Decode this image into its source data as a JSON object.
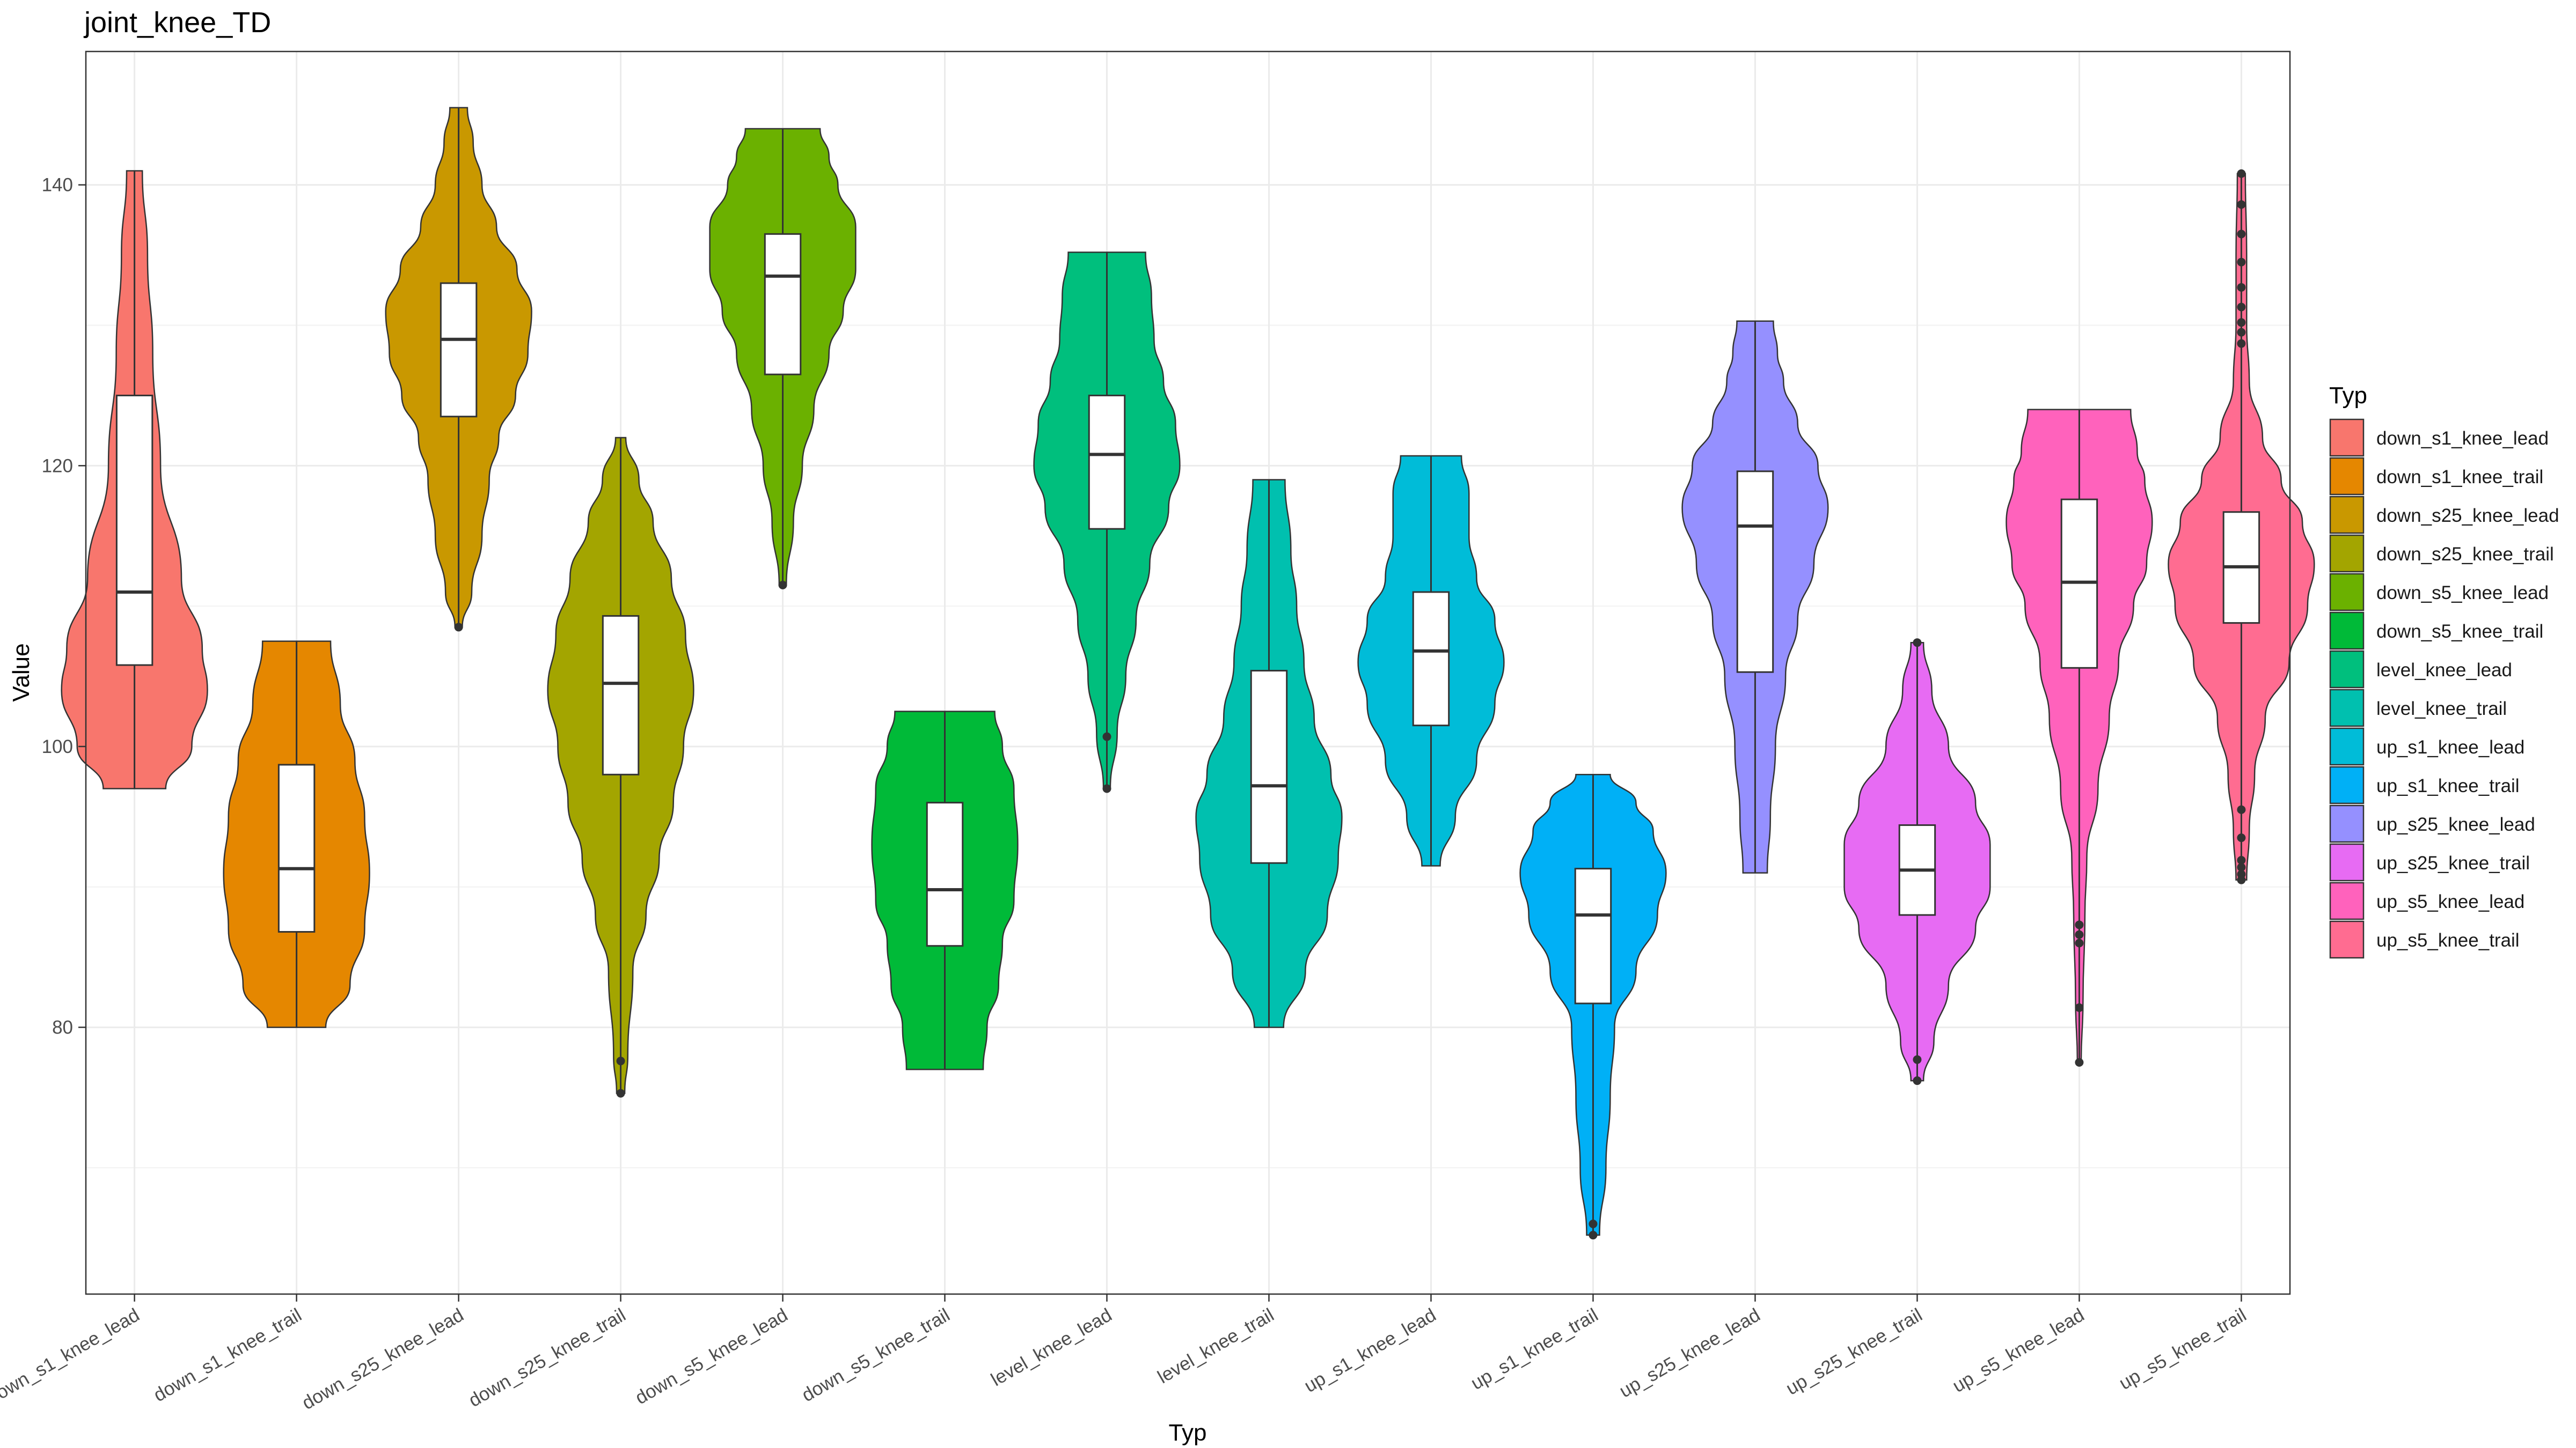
{
  "chart_data": {
    "type": "violin",
    "title": "joint_knee_TD",
    "xlabel": "Typ",
    "ylabel": "Value",
    "ylim": [
      61,
      149.5
    ],
    "yticks": [
      80,
      100,
      120,
      140
    ],
    "grid": true,
    "legend_title": "Typ",
    "legend_position": "right",
    "categories": [
      "down_s1_knee_lead",
      "down_s1_knee_trail",
      "down_s25_knee_lead",
      "down_s25_knee_trail",
      "down_s5_knee_lead",
      "down_s5_knee_trail",
      "level_knee_lead",
      "level_knee_trail",
      "up_s1_knee_lead",
      "up_s1_knee_trail",
      "up_s25_knee_lead",
      "up_s25_knee_trail",
      "up_s5_knee_lead",
      "up_s5_knee_trail"
    ],
    "colors": [
      "#F8766D",
      "#E58700",
      "#C99800",
      "#A3A500",
      "#6BB100",
      "#00BA38",
      "#00BF7D",
      "#00C0AF",
      "#00BCD8",
      "#00B0F6",
      "#9590FF",
      "#E76BF3",
      "#FF62BC",
      "#FF6C91"
    ],
    "series": [
      {
        "name": "down_s1_knee_lead",
        "min": 97,
        "max": 141,
        "q1": 105.8,
        "median": 111,
        "q3": 125,
        "outliers": [],
        "density": [
          [
            97,
            0.12
          ],
          [
            100,
            0.22
          ],
          [
            104,
            0.28
          ],
          [
            107,
            0.26
          ],
          [
            112,
            0.18
          ],
          [
            120,
            0.1
          ],
          [
            128,
            0.07
          ],
          [
            135,
            0.05
          ],
          [
            141,
            0.03
          ]
        ]
      },
      {
        "name": "down_s1_knee_trail",
        "min": 80,
        "max": 107.5,
        "q1": 86.8,
        "median": 91.3,
        "q3": 98.7,
        "outliers": [],
        "density": [
          [
            80,
            0.12
          ],
          [
            83,
            0.22
          ],
          [
            87,
            0.28
          ],
          [
            91,
            0.3
          ],
          [
            95,
            0.28
          ],
          [
            99,
            0.24
          ],
          [
            103,
            0.18
          ],
          [
            107.5,
            0.14
          ]
        ]
      },
      {
        "name": "down_s25_knee_lead",
        "min": 108.5,
        "max": 145.5,
        "q1": 123.5,
        "median": 129,
        "q3": 133,
        "outliers": [
          108.5
        ],
        "density": [
          [
            108.5,
            0.05
          ],
          [
            111,
            0.18
          ],
          [
            115,
            0.32
          ],
          [
            119,
            0.42
          ],
          [
            122,
            0.55
          ],
          [
            125,
            0.78
          ],
          [
            128,
            0.95
          ],
          [
            131,
            1.0
          ],
          [
            134,
            0.8
          ],
          [
            137,
            0.52
          ],
          [
            140,
            0.32
          ],
          [
            143,
            0.2
          ],
          [
            145.5,
            0.12
          ]
        ]
      },
      {
        "name": "down_s25_knee_trail",
        "min": 75.3,
        "max": 122,
        "q1": 98,
        "median": 104.5,
        "q3": 109.3,
        "outliers": [
          75.3,
          77.6
        ],
        "density": [
          [
            75.3,
            0.04
          ],
          [
            78,
            0.07
          ],
          [
            84,
            0.12
          ],
          [
            88,
            0.25
          ],
          [
            92,
            0.38
          ],
          [
            96,
            0.52
          ],
          [
            100,
            0.62
          ],
          [
            104,
            0.72
          ],
          [
            108,
            0.64
          ],
          [
            112,
            0.5
          ],
          [
            116,
            0.32
          ],
          [
            119,
            0.18
          ],
          [
            122,
            0.05
          ]
        ]
      },
      {
        "name": "down_s5_knee_lead",
        "min": 111.5,
        "max": 144,
        "q1": 126.5,
        "median": 133.5,
        "q3": 136.5,
        "outliers": [
          111.5
        ],
        "density": [
          [
            111.5,
            0.04
          ],
          [
            116,
            0.12
          ],
          [
            120,
            0.22
          ],
          [
            124,
            0.35
          ],
          [
            128,
            0.52
          ],
          [
            131,
            0.68
          ],
          [
            134,
            0.82
          ],
          [
            137,
            0.82
          ],
          [
            140,
            0.62
          ],
          [
            142,
            0.52
          ],
          [
            144,
            0.42
          ]
        ]
      },
      {
        "name": "down_s5_knee_trail",
        "min": 77,
        "max": 102.5,
        "q1": 85.8,
        "median": 89.8,
        "q3": 96,
        "outliers": [],
        "density": [
          [
            77,
            0.2
          ],
          [
            80,
            0.22
          ],
          [
            83,
            0.28
          ],
          [
            86,
            0.3
          ],
          [
            89,
            0.36
          ],
          [
            93,
            0.38
          ],
          [
            97,
            0.36
          ],
          [
            100,
            0.3
          ],
          [
            102.5,
            0.26
          ]
        ]
      },
      {
        "name": "level_knee_lead",
        "min": 97,
        "max": 135.2,
        "q1": 115.5,
        "median": 120.8,
        "q3": 125,
        "outliers": [
          97,
          100.7
        ],
        "density": [
          [
            97,
            0.04
          ],
          [
            101,
            0.12
          ],
          [
            105,
            0.22
          ],
          [
            109,
            0.34
          ],
          [
            113,
            0.5
          ],
          [
            117,
            0.72
          ],
          [
            120,
            0.85
          ],
          [
            123,
            0.8
          ],
          [
            126,
            0.66
          ],
          [
            129,
            0.55
          ],
          [
            132,
            0.52
          ],
          [
            135.2,
            0.45
          ]
        ]
      },
      {
        "name": "level_knee_trail",
        "min": 80,
        "max": 119,
        "q1": 91.7,
        "median": 97.2,
        "q3": 105.4,
        "outliers": [],
        "density": [
          [
            80,
            0.2
          ],
          [
            84,
            0.5
          ],
          [
            88,
            0.8
          ],
          [
            92,
            0.95
          ],
          [
            95,
            1.0
          ],
          [
            98,
            0.85
          ],
          [
            102,
            0.62
          ],
          [
            106,
            0.48
          ],
          [
            110,
            0.38
          ],
          [
            114,
            0.3
          ],
          [
            119,
            0.22
          ]
        ]
      },
      {
        "name": "up_s1_knee_lead",
        "min": 91.5,
        "max": 120.7,
        "q1": 101.5,
        "median": 106.8,
        "q3": 111,
        "outliers": [],
        "density": [
          [
            91.5,
            0.06
          ],
          [
            95,
            0.16
          ],
          [
            99,
            0.3
          ],
          [
            103,
            0.42
          ],
          [
            106,
            0.48
          ],
          [
            109,
            0.42
          ],
          [
            112,
            0.3
          ],
          [
            115,
            0.25
          ],
          [
            118,
            0.25
          ],
          [
            120.7,
            0.2
          ]
        ]
      },
      {
        "name": "up_s1_knee_trail",
        "min": 65.2,
        "max": 98,
        "q1": 81.7,
        "median": 88,
        "q3": 91.3,
        "outliers": [
          65.2,
          66
        ],
        "density": [
          [
            65.2,
            0.03
          ],
          [
            70,
            0.06
          ],
          [
            75,
            0.08
          ],
          [
            80,
            0.1
          ],
          [
            84,
            0.2
          ],
          [
            88,
            0.3
          ],
          [
            91,
            0.34
          ],
          [
            94,
            0.28
          ],
          [
            96,
            0.2
          ],
          [
            98,
            0.08
          ]
        ]
      },
      {
        "name": "up_s25_knee_lead",
        "min": 91,
        "max": 130.3,
        "q1": 105.3,
        "median": 115.7,
        "q3": 119.6,
        "outliers": [],
        "density": [
          [
            91,
            0.12
          ],
          [
            95,
            0.15
          ],
          [
            100,
            0.2
          ],
          [
            105,
            0.3
          ],
          [
            109,
            0.42
          ],
          [
            113,
            0.58
          ],
          [
            117,
            0.72
          ],
          [
            120,
            0.62
          ],
          [
            123,
            0.42
          ],
          [
            126,
            0.28
          ],
          [
            128,
            0.22
          ],
          [
            130.3,
            0.18
          ]
        ]
      },
      {
        "name": "up_s25_knee_trail",
        "min": 76.2,
        "max": 107.4,
        "q1": 88,
        "median": 91.2,
        "q3": 94.4,
        "outliers": [
          76.2,
          77.7,
          107.4
        ],
        "density": [
          [
            76.2,
            0.03
          ],
          [
            79,
            0.08
          ],
          [
            83,
            0.15
          ],
          [
            87,
            0.28
          ],
          [
            90,
            0.35
          ],
          [
            93,
            0.35
          ],
          [
            96,
            0.28
          ],
          [
            100,
            0.15
          ],
          [
            104,
            0.07
          ],
          [
            107.4,
            0.03
          ]
        ]
      },
      {
        "name": "up_s5_knee_lead",
        "min": 77.5,
        "max": 124,
        "q1": 105.6,
        "median": 111.7,
        "q3": 117.6,
        "outliers": [
          77.5,
          81.4,
          86,
          86.6,
          87.3
        ],
        "density": [
          [
            77.5,
            0.02
          ],
          [
            82,
            0.04
          ],
          [
            88,
            0.06
          ],
          [
            92,
            0.08
          ],
          [
            97,
            0.2
          ],
          [
            102,
            0.32
          ],
          [
            106,
            0.42
          ],
          [
            110,
            0.58
          ],
          [
            113,
            0.72
          ],
          [
            116,
            0.78
          ],
          [
            119,
            0.7
          ],
          [
            121,
            0.62
          ],
          [
            124,
            0.55
          ]
        ]
      },
      {
        "name": "up_s5_knee_trail",
        "min": 90.5,
        "max": 140.8,
        "q1": 108.8,
        "median": 112.8,
        "q3": 116.7,
        "outliers": [
          90.5,
          90.9,
          91.4,
          91.9,
          93.5,
          95.5,
          128.7,
          129.5,
          130.2,
          131.3,
          132.7,
          134.5,
          136.5,
          138.6,
          140.8
        ],
        "density": [
          [
            90.5,
            0.04
          ],
          [
            94,
            0.06
          ],
          [
            98,
            0.1
          ],
          [
            102,
            0.18
          ],
          [
            106,
            0.36
          ],
          [
            110,
            0.5
          ],
          [
            113,
            0.55
          ],
          [
            116,
            0.46
          ],
          [
            119,
            0.3
          ],
          [
            122,
            0.16
          ],
          [
            126,
            0.06
          ],
          [
            130,
            0.04
          ],
          [
            135,
            0.04
          ],
          [
            140.8,
            0.03
          ]
        ]
      }
    ]
  }
}
